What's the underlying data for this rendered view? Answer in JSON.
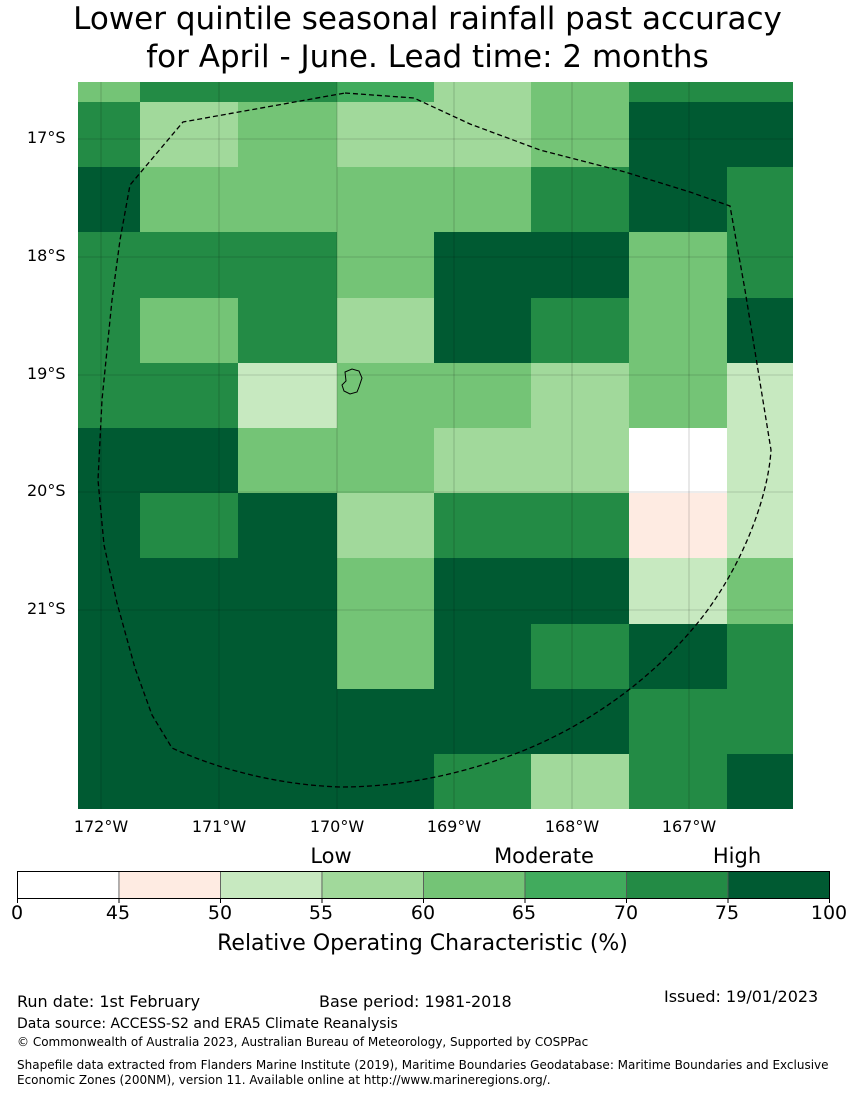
{
  "header": {
    "title_line1": "Lower quintile seasonal rainfall past accuracy",
    "title_line2": "for April - June. Lead time: 2 months"
  },
  "map": {
    "lat_labels": [
      "17°S",
      "18°S",
      "19°S",
      "20°S",
      "21°S"
    ],
    "lon_labels": [
      "172°W",
      "171°W",
      "170°W",
      "169°W",
      "168°W",
      "167°W"
    ],
    "grid_values": [
      [
        60,
        70,
        70,
        65,
        55,
        60,
        70,
        70
      ],
      [
        70,
        55,
        60,
        55,
        55,
        60,
        75,
        80
      ],
      [
        80,
        60,
        60,
        60,
        60,
        70,
        75,
        70
      ],
      [
        70,
        70,
        70,
        60,
        75,
        80,
        60,
        70
      ],
      [
        70,
        60,
        70,
        55,
        75,
        70,
        60,
        75
      ],
      [
        70,
        70,
        50,
        60,
        60,
        55,
        60,
        50
      ],
      [
        80,
        75,
        60,
        60,
        55,
        55,
        40,
        50
      ],
      [
        80,
        70,
        75,
        55,
        70,
        70,
        45,
        50
      ],
      [
        80,
        80,
        80,
        60,
        75,
        75,
        50,
        60
      ],
      [
        80,
        80,
        80,
        60,
        75,
        70,
        75,
        70
      ],
      [
        80,
        80,
        80,
        80,
        75,
        75,
        70,
        70
      ],
      [
        80,
        80,
        75,
        80,
        70,
        55,
        70,
        75
      ]
    ],
    "land_color": "#ffffff",
    "boundary_style": "dashed"
  },
  "colorbar": {
    "categories": [
      "Low",
      "Moderate",
      "High"
    ],
    "ticks": [
      "0",
      "45",
      "50",
      "55",
      "60",
      "65",
      "70",
      "75",
      "100"
    ],
    "bins": [
      {
        "from": 0,
        "to": 45,
        "color": "#ffffff"
      },
      {
        "from": 45,
        "to": 50,
        "color": "#feebe2"
      },
      {
        "from": 50,
        "to": 55,
        "color": "#c7e9c0"
      },
      {
        "from": 55,
        "to": 60,
        "color": "#a1d99b"
      },
      {
        "from": 60,
        "to": 65,
        "color": "#74c476"
      },
      {
        "from": 65,
        "to": 70,
        "color": "#41ab5d"
      },
      {
        "from": 70,
        "to": 75,
        "color": "#238b45"
      },
      {
        "from": 75,
        "to": 100,
        "color": "#005a32"
      }
    ],
    "label": "Relative Operating Characteristic (%)"
  },
  "footer": {
    "run_date": "Run date: 1st February",
    "base_period": "Base period: 1981-2018",
    "issued": "Issued: 19/01/2023",
    "data_source": "Data source: ACCESS-S2 and ERA5 Climate Reanalysis",
    "copyright": "© Commonwealth of Australia 2023, Australian Bureau of Meteorology, Supported by COSPPac",
    "shapefile_line1": "Shapefile data extracted from Flanders Marine Institute (2019), Maritime Boundaries Geodatabase: Maritime Boundaries and Exclusive",
    "shapefile_line2": "Economic Zones (200NM), version 11. Available online at http://www.marineregions.org/."
  }
}
